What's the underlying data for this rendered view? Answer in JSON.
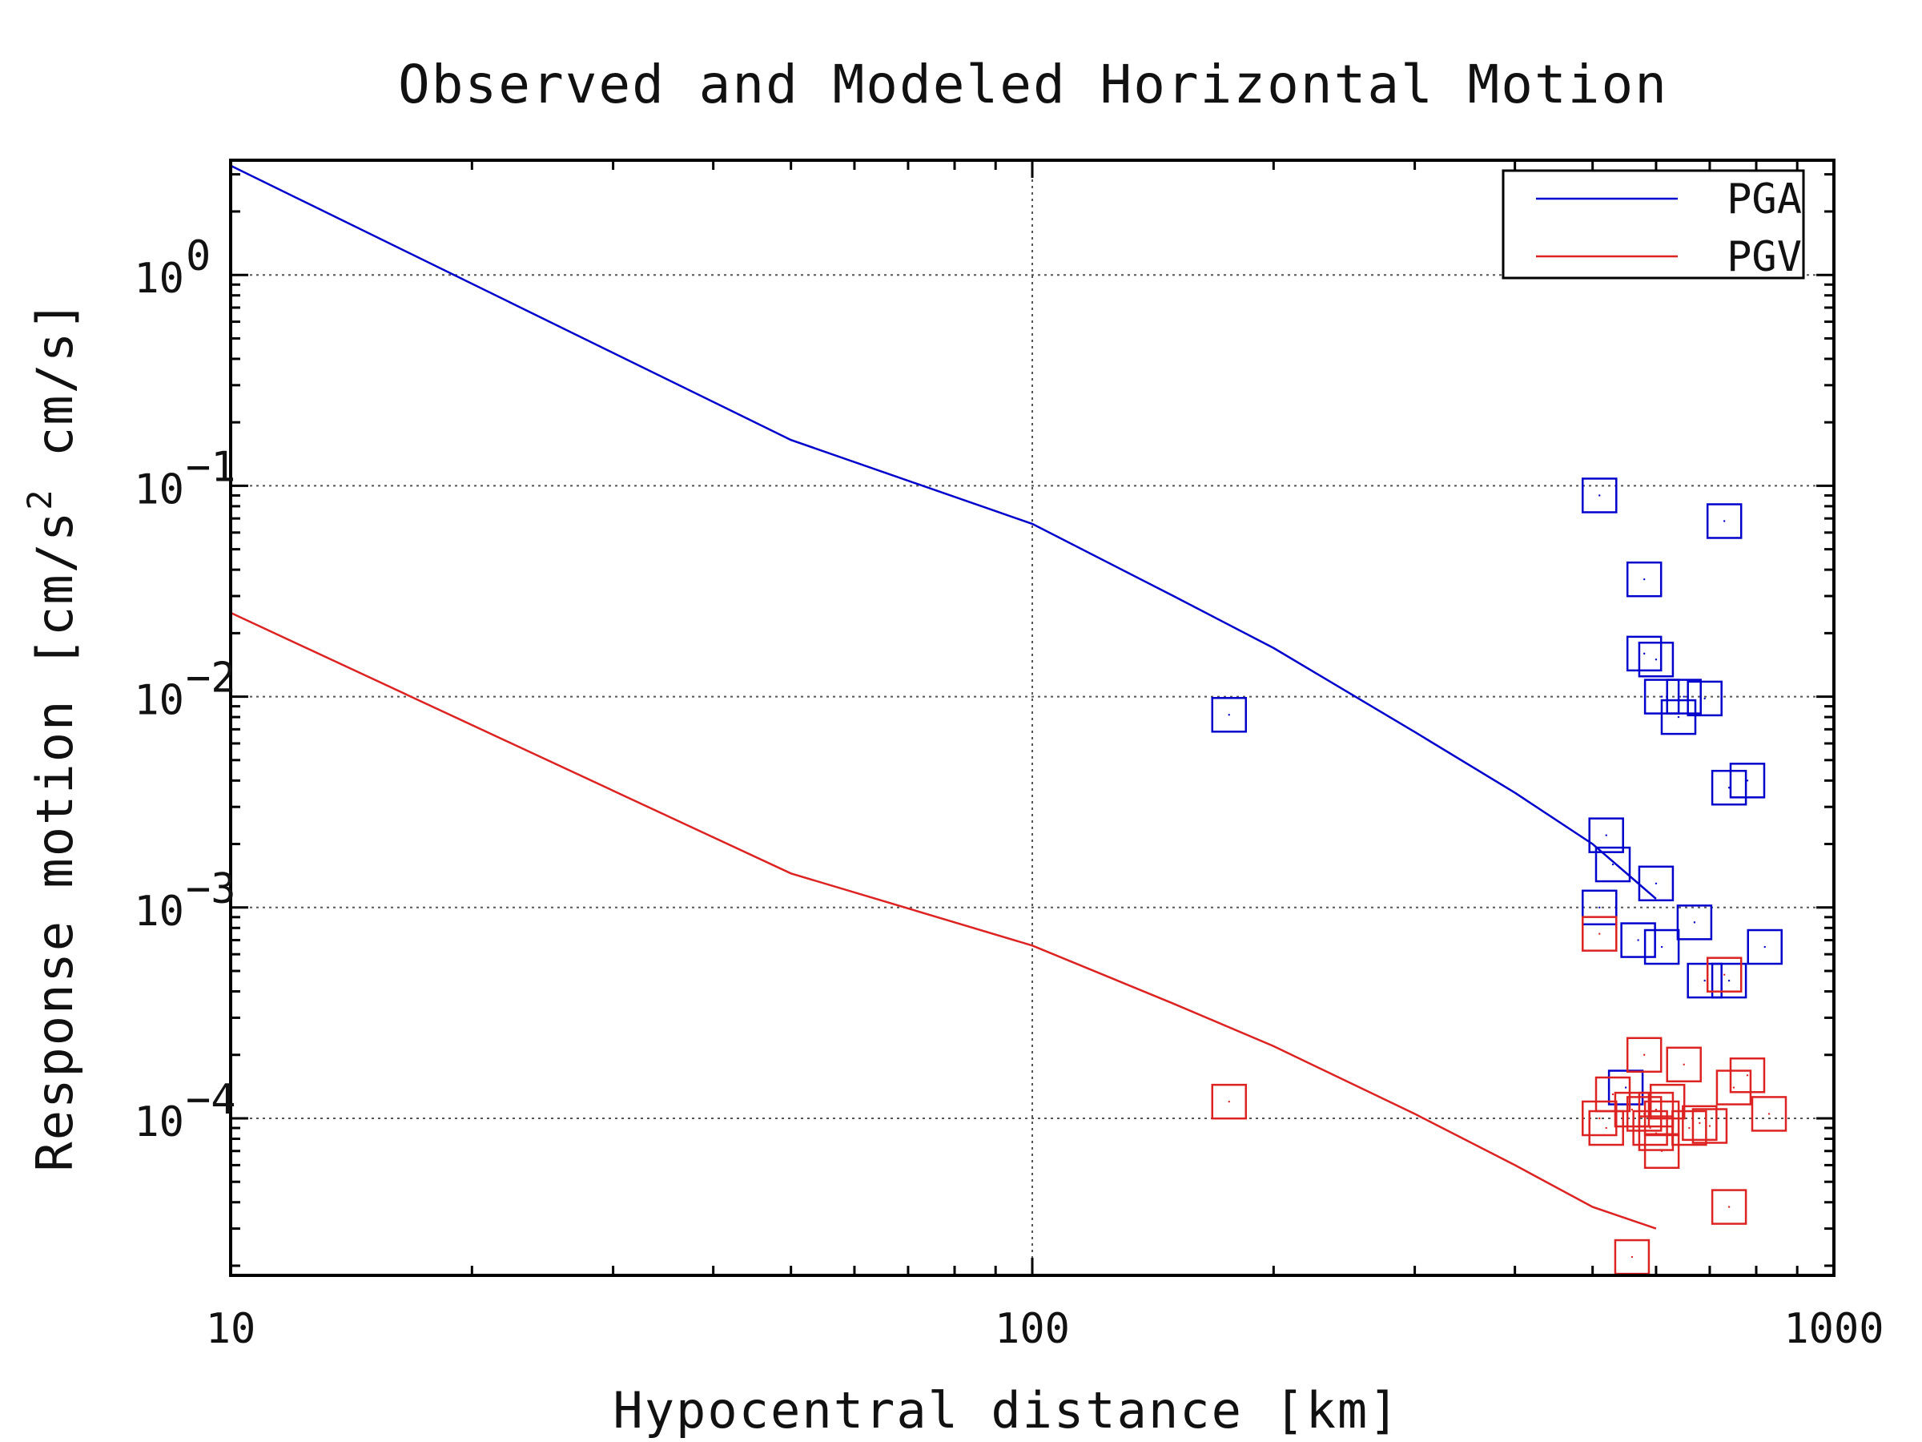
{
  "chart_data": {
    "type": "scatter",
    "title": "Observed and Modeled Horizontal Motion",
    "xlabel": "Hypocentral distance [km]",
    "ylabel": "Response motion [cm/s^2 cm/s]",
    "ylabel_parts": [
      "Response motion [cm/s",
      "2",
      " cm/s]"
    ],
    "xscale": "log",
    "yscale": "log",
    "xlim": [
      10,
      1000
    ],
    "ylim": [
      1.8e-05,
      3.5
    ],
    "x_ticks": [
      {
        "value": 10,
        "label": "10"
      },
      {
        "value": 100,
        "label": "100"
      },
      {
        "value": 1000,
        "label": "1000"
      }
    ],
    "y_ticks": [
      {
        "value": 1,
        "base": "10",
        "exp": "0"
      },
      {
        "value": 0.1,
        "base": "10",
        "exp": "−1"
      },
      {
        "value": 0.01,
        "base": "10",
        "exp": "−2"
      },
      {
        "value": 0.001,
        "base": "10",
        "exp": "−3"
      },
      {
        "value": 0.0001,
        "base": "10",
        "exp": "−4"
      }
    ],
    "grid": true,
    "legend_position": "top-right",
    "series": [
      {
        "name": "PGA",
        "color": "#0000cc",
        "model_line": [
          [
            10,
            3.3
          ],
          [
            50,
            0.165
          ],
          [
            100,
            0.066
          ],
          [
            150,
            0.03
          ],
          [
            200,
            0.017
          ],
          [
            300,
            0.0068
          ],
          [
            400,
            0.0035
          ],
          [
            500,
            0.002
          ],
          [
            600,
            0.0011
          ]
        ],
        "observed": [
          [
            176,
            0.0082
          ],
          [
            510,
            0.09
          ],
          [
            580,
            0.036
          ],
          [
            580,
            0.016
          ],
          [
            600,
            0.015
          ],
          [
            610,
            0.01
          ],
          [
            640,
            0.008
          ],
          [
            650,
            0.01
          ],
          [
            690,
            0.0098
          ],
          [
            730,
            0.068
          ],
          [
            740,
            0.0037
          ],
          [
            780,
            0.004
          ],
          [
            520,
            0.0022
          ],
          [
            530,
            0.0016
          ],
          [
            600,
            0.0013
          ],
          [
            510,
            0.001
          ],
          [
            570,
            0.0007
          ],
          [
            610,
            0.00065
          ],
          [
            670,
            0.00085
          ],
          [
            690,
            0.00045
          ],
          [
            740,
            0.00045
          ],
          [
            820,
            0.00065
          ],
          [
            550,
            0.00014
          ]
        ]
      },
      {
        "name": "PGV",
        "color": "#dd2222",
        "model_line": [
          [
            10,
            0.025
          ],
          [
            50,
            0.00145
          ],
          [
            100,
            0.00066
          ],
          [
            150,
            0.00035
          ],
          [
            200,
            0.00022
          ],
          [
            300,
            0.000105
          ],
          [
            400,
            6e-05
          ],
          [
            500,
            3.8e-05
          ],
          [
            600,
            3e-05
          ]
        ],
        "observed": [
          [
            176,
            0.00012
          ],
          [
            510,
            0.00075
          ],
          [
            510,
            0.0001
          ],
          [
            520,
            9e-05
          ],
          [
            530,
            0.00013
          ],
          [
            560,
            0.00011
          ],
          [
            580,
            0.0002
          ],
          [
            580,
            0.000105
          ],
          [
            590,
            9e-05
          ],
          [
            600,
            8.5e-05
          ],
          [
            600,
            0.00011
          ],
          [
            610,
            0.0001
          ],
          [
            610,
            7e-05
          ],
          [
            620,
            0.00012
          ],
          [
            650,
            0.00018
          ],
          [
            660,
            9e-05
          ],
          [
            680,
            9.5e-05
          ],
          [
            700,
            9.2e-05
          ],
          [
            730,
            0.00048
          ],
          [
            750,
            0.00014
          ],
          [
            780,
            0.00016
          ],
          [
            740,
            3.8e-05
          ],
          [
            830,
            0.000105
          ],
          [
            560,
            2.2e-05
          ]
        ]
      }
    ]
  }
}
